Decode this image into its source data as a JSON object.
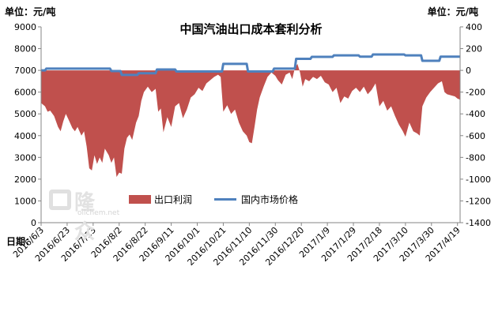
{
  "left_unit": "单位：元/吨",
  "right_unit": "单位：元/吨",
  "x_unit": "日期：",
  "watermark": {
    "cn": "隆众",
    "en": "oilchem.net"
  },
  "chart_data": {
    "type": "area+line",
    "title": "中国汽油出口成本套利分析",
    "x_ticks": [
      "2016/6/3",
      "2016/6/23",
      "2016/7/13",
      "2016/8/2",
      "2016/8/22",
      "2016/9/11",
      "2016/10/1",
      "2016/10/21",
      "2016/11/10",
      "2016/11/30",
      "2016/12/20",
      "2017/1/9",
      "2017/1/29",
      "2017/2/18",
      "2017/3/10",
      "2017/3/30",
      "2017/4/19"
    ],
    "x_range": [
      "2016/6/3",
      "2017/4/21"
    ],
    "y_left": {
      "range": [
        0,
        9000
      ],
      "ticks": [
        0,
        1000,
        2000,
        3000,
        4000,
        5000,
        6000,
        7000,
        8000,
        9000
      ]
    },
    "y_right": {
      "range": [
        -1400,
        400
      ],
      "ticks": [
        -1400,
        -1200,
        -1000,
        -800,
        -600,
        -400,
        -200,
        0,
        200,
        400
      ]
    },
    "grid": false,
    "legend_position": "bottom-left",
    "series": [
      {
        "name": "出口利润",
        "type": "area",
        "axis": "right",
        "color": "#c0504d",
        "points": [
          [
            "2016/6/3",
            -300
          ],
          [
            "2016/6/6",
            -330
          ],
          [
            "2016/6/8",
            -380
          ],
          [
            "2016/6/10",
            -370
          ],
          [
            "2016/6/13",
            -420
          ],
          [
            "2016/6/16",
            -520
          ],
          [
            "2016/6/18",
            -560
          ],
          [
            "2016/6/20",
            -470
          ],
          [
            "2016/6/22",
            -400
          ],
          [
            "2016/6/24",
            -450
          ],
          [
            "2016/6/27",
            -530
          ],
          [
            "2016/6/29",
            -560
          ],
          [
            "2016/7/1",
            -520
          ],
          [
            "2016/7/4",
            -600
          ],
          [
            "2016/7/6",
            -560
          ],
          [
            "2016/7/8",
            -700
          ],
          [
            "2016/7/10",
            -900
          ],
          [
            "2016/7/12",
            -920
          ],
          [
            "2016/7/14",
            -780
          ],
          [
            "2016/7/16",
            -860
          ],
          [
            "2016/7/18",
            -800
          ],
          [
            "2016/7/20",
            -850
          ],
          [
            "2016/7/22",
            -720
          ],
          [
            "2016/7/25",
            -780
          ],
          [
            "2016/7/27",
            -850
          ],
          [
            "2016/7/29",
            -800
          ],
          [
            "2016/7/31",
            -980
          ],
          [
            "2016/8/2",
            -940
          ],
          [
            "2016/8/4",
            -950
          ],
          [
            "2016/8/6",
            -720
          ],
          [
            "2016/8/8",
            -620
          ],
          [
            "2016/8/10",
            -590
          ],
          [
            "2016/8/12",
            -640
          ],
          [
            "2016/8/15",
            -480
          ],
          [
            "2016/8/17",
            -420
          ],
          [
            "2016/8/19",
            -280
          ],
          [
            "2016/8/21",
            -200
          ],
          [
            "2016/8/24",
            -150
          ],
          [
            "2016/8/27",
            -200
          ],
          [
            "2016/8/30",
            -170
          ],
          [
            "2016/9/1",
            -380
          ],
          [
            "2016/9/3",
            -350
          ],
          [
            "2016/9/5",
            -570
          ],
          [
            "2016/9/8",
            -430
          ],
          [
            "2016/9/11",
            -520
          ],
          [
            "2016/9/14",
            -330
          ],
          [
            "2016/9/17",
            -300
          ],
          [
            "2016/9/20",
            -440
          ],
          [
            "2016/9/23",
            -360
          ],
          [
            "2016/9/26",
            -250
          ],
          [
            "2016/9/29",
            -220
          ],
          [
            "2016/10/2",
            -160
          ],
          [
            "2016/10/5",
            -190
          ],
          [
            "2016/10/8",
            -120
          ],
          [
            "2016/10/11",
            -90
          ],
          [
            "2016/10/14",
            -60
          ],
          [
            "2016/10/17",
            -40
          ],
          [
            "2016/10/19",
            -60
          ],
          [
            "2016/10/21",
            -380
          ],
          [
            "2016/10/24",
            -320
          ],
          [
            "2016/10/27",
            -400
          ],
          [
            "2016/10/30",
            -360
          ],
          [
            "2016/11/2",
            -480
          ],
          [
            "2016/11/5",
            -560
          ],
          [
            "2016/11/8",
            -600
          ],
          [
            "2016/11/10",
            -660
          ],
          [
            "2016/11/12",
            -670
          ],
          [
            "2016/11/14",
            -520
          ],
          [
            "2016/11/16",
            -360
          ],
          [
            "2016/11/18",
            -250
          ],
          [
            "2016/11/21",
            -150
          ],
          [
            "2016/11/24",
            -60
          ],
          [
            "2016/11/27",
            -20
          ],
          [
            "2016/11/30",
            -50
          ],
          [
            "2016/12/2",
            -90
          ],
          [
            "2016/12/5",
            -130
          ],
          [
            "2016/12/8",
            -40
          ],
          [
            "2016/12/11",
            -20
          ],
          [
            "2016/12/13",
            -80
          ],
          [
            "2016/12/15",
            20
          ],
          [
            "2016/12/17",
            60
          ],
          [
            "2016/12/19",
            -20
          ],
          [
            "2016/12/21",
            -150
          ],
          [
            "2016/12/23",
            -80
          ],
          [
            "2016/12/26",
            -100
          ],
          [
            "2016/12/29",
            -60
          ],
          [
            "2017/1/1",
            -80
          ],
          [
            "2017/1/4",
            -50
          ],
          [
            "2017/1/7",
            -110
          ],
          [
            "2017/1/10",
            -130
          ],
          [
            "2017/1/13",
            -200
          ],
          [
            "2017/1/16",
            -160
          ],
          [
            "2017/1/19",
            -300
          ],
          [
            "2017/1/22",
            -240
          ],
          [
            "2017/1/25",
            -260
          ],
          [
            "2017/1/28",
            -190
          ],
          [
            "2017/1/31",
            -160
          ],
          [
            "2017/2/3",
            -200
          ],
          [
            "2017/2/6",
            -150
          ],
          [
            "2017/2/9",
            -220
          ],
          [
            "2017/2/12",
            -180
          ],
          [
            "2017/2/15",
            -120
          ],
          [
            "2017/2/18",
            -330
          ],
          [
            "2017/2/21",
            -280
          ],
          [
            "2017/2/24",
            -370
          ],
          [
            "2017/2/27",
            -330
          ],
          [
            "2017/3/2",
            -420
          ],
          [
            "2017/3/5",
            -500
          ],
          [
            "2017/3/8",
            -560
          ],
          [
            "2017/3/10",
            -610
          ],
          [
            "2017/3/13",
            -480
          ],
          [
            "2017/3/16",
            -560
          ],
          [
            "2017/3/19",
            -580
          ],
          [
            "2017/3/21",
            -600
          ],
          [
            "2017/3/23",
            -330
          ],
          [
            "2017/3/26",
            -250
          ],
          [
            "2017/3/29",
            -200
          ],
          [
            "2017/4/1",
            -160
          ],
          [
            "2017/4/4",
            -120
          ],
          [
            "2017/4/7",
            -100
          ],
          [
            "2017/4/9",
            -200
          ],
          [
            "2017/4/11",
            -220
          ],
          [
            "2017/4/14",
            -230
          ],
          [
            "2017/4/17",
            -240
          ],
          [
            "2017/4/19",
            -260
          ],
          [
            "2017/4/21",
            -270
          ]
        ]
      },
      {
        "name": "国内市场价格",
        "type": "line",
        "axis": "left",
        "color": "#4f81bd",
        "points": [
          [
            "2016/6/3",
            7000
          ],
          [
            "2016/6/6",
            7000
          ],
          [
            "2016/6/7",
            7080
          ],
          [
            "2016/7/26",
            7080
          ],
          [
            "2016/7/27",
            6970
          ],
          [
            "2016/8/3",
            6970
          ],
          [
            "2016/8/4",
            6790
          ],
          [
            "2016/8/16",
            6790
          ],
          [
            "2016/8/17",
            6870
          ],
          [
            "2016/8/30",
            6870
          ],
          [
            "2016/8/31",
            7040
          ],
          [
            "2016/9/14",
            7040
          ],
          [
            "2016/9/15",
            6950
          ],
          [
            "2016/10/20",
            6950
          ],
          [
            "2016/10/21",
            7300
          ],
          [
            "2016/11/8",
            7300
          ],
          [
            "2016/11/9",
            6950
          ],
          [
            "2016/11/28",
            6950
          ],
          [
            "2016/11/29",
            7080
          ],
          [
            "2016/12/15",
            7080
          ],
          [
            "2016/12/16",
            7530
          ],
          [
            "2016/12/27",
            7530
          ],
          [
            "2016/12/28",
            7620
          ],
          [
            "2017/1/13",
            7620
          ],
          [
            "2017/1/14",
            7690
          ],
          [
            "2017/2/2",
            7690
          ],
          [
            "2017/2/3",
            7630
          ],
          [
            "2017/2/12",
            7630
          ],
          [
            "2017/2/13",
            7730
          ],
          [
            "2017/3/9",
            7730
          ],
          [
            "2017/3/10",
            7690
          ],
          [
            "2017/3/22",
            7690
          ],
          [
            "2017/3/23",
            7440
          ],
          [
            "2017/4/5",
            7440
          ],
          [
            "2017/4/6",
            7630
          ],
          [
            "2017/4/21",
            7630
          ]
        ]
      }
    ]
  }
}
